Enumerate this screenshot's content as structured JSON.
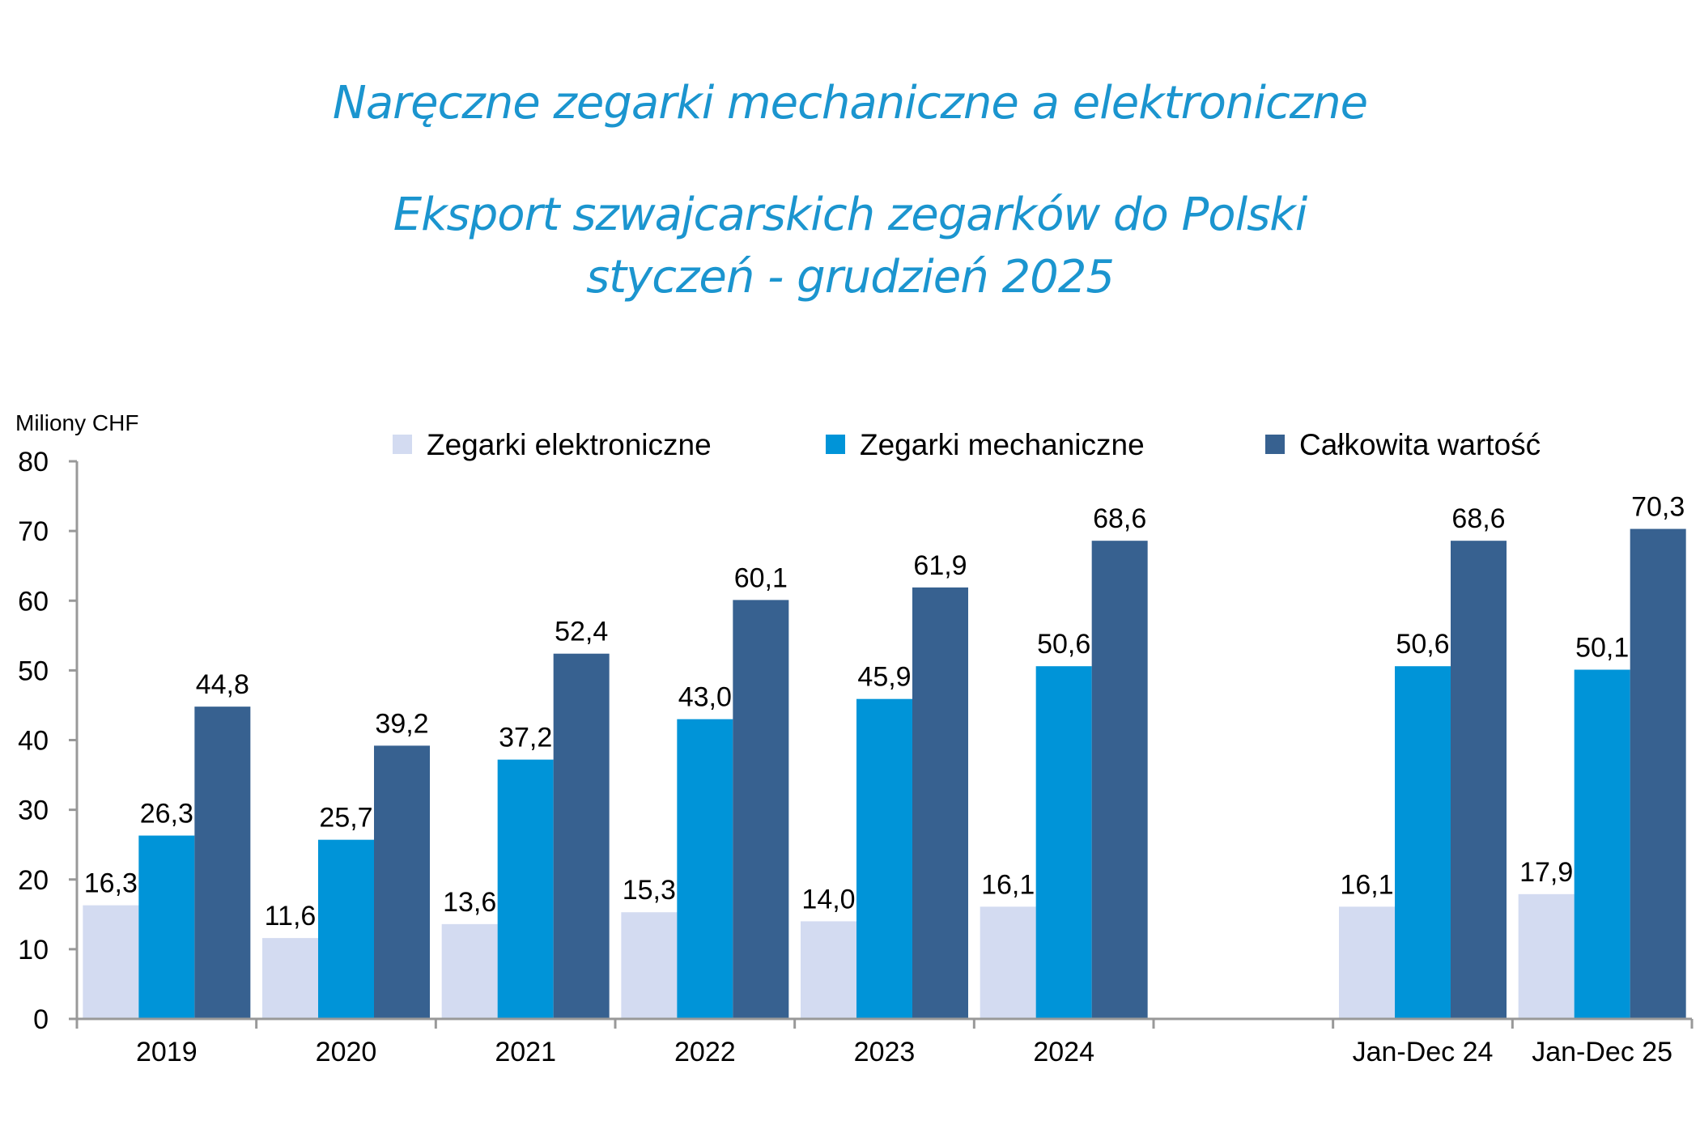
{
  "chart_data": {
    "type": "bar",
    "title": "Naręczne zegarki mechaniczne a elektroniczne",
    "subtitle": [
      "Eksport szwajcarskich zegarków do Polski",
      "styczeń - grudzień 2025"
    ],
    "ylabel": "Miliony CHF",
    "xlabel": "",
    "ylim": [
      0,
      80
    ],
    "yticks": [
      0,
      10,
      20,
      30,
      40,
      50,
      60,
      70,
      80
    ],
    "categories": [
      "2019",
      "2020",
      "2021",
      "2022",
      "2023",
      "2024",
      "",
      "Jan-Dec 24",
      "Jan-Dec 25"
    ],
    "series": [
      {
        "name": "Zegarki elektroniczne",
        "color": "#d3dbf1",
        "values": [
          16.3,
          11.6,
          13.6,
          15.3,
          14.0,
          16.1,
          null,
          16.1,
          17.9
        ],
        "labels": [
          "16,3",
          "11,6",
          "13,6",
          "15,3",
          "14,0",
          "16,1",
          "",
          "16,1",
          "17,9"
        ]
      },
      {
        "name": "Zegarki mechaniczne",
        "color": "#0094d8",
        "values": [
          26.3,
          25.7,
          37.2,
          43.0,
          45.9,
          50.6,
          null,
          50.6,
          50.1
        ],
        "labels": [
          "26,3",
          "25,7",
          "37,2",
          "43,0",
          "45,9",
          "50,6",
          "",
          "50,6",
          "50,1"
        ]
      },
      {
        "name": "Całkowita wartość",
        "color": "#376190",
        "values": [
          44.8,
          39.2,
          52.4,
          60.1,
          61.9,
          68.6,
          null,
          68.6,
          70.3
        ],
        "labels": [
          "44,8",
          "39,2",
          "52,4",
          "60,1",
          "61,9",
          "68,6",
          "",
          "68,6",
          "70,3"
        ]
      }
    ],
    "legend_position": "top",
    "grid": false,
    "data_labels": true
  }
}
